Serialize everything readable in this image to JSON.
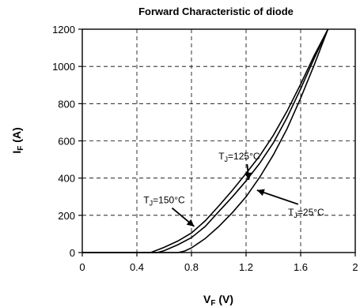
{
  "chart_data": {
    "type": "line",
    "title": "Forward Characteristic of diode",
    "xlabel": {
      "main": "V",
      "sub": "F",
      "unit": " (V)"
    },
    "ylabel": {
      "main": "I",
      "sub": "F",
      "unit": " (A)"
    },
    "xlim": [
      0,
      2
    ],
    "ylim": [
      0,
      1200
    ],
    "xticks": [
      0,
      0.4,
      0.8,
      1.2,
      1.6,
      2
    ],
    "xtick_labels": [
      "0",
      "0.4",
      "0.8",
      "1.2",
      "1.6",
      "2"
    ],
    "yticks": [
      0,
      200,
      400,
      600,
      800,
      1000,
      1200
    ],
    "ytick_labels": [
      "0",
      "200",
      "400",
      "600",
      "800",
      "1000",
      "1200"
    ],
    "grid": true,
    "series": [
      {
        "name": "",
        "x": [
          0.0,
          0.5,
          0.55,
          0.6,
          0.7,
          0.8,
          0.9,
          1.0,
          1.1,
          1.2,
          1.3,
          1.4,
          1.5,
          1.6,
          1.7,
          1.8
        ],
        "y": [
          0,
          0,
          14,
          28,
          62,
          105,
          170,
          250,
          335,
          425,
          520,
          630,
          760,
          905,
          1060,
          1200
        ]
      },
      {
        "name": "",
        "x": [
          0.0,
          0.55,
          0.6,
          0.7,
          0.8,
          0.9,
          1.0,
          1.1,
          1.2,
          1.3,
          1.4,
          1.5,
          1.6,
          1.7,
          1.8
        ],
        "y": [
          0,
          0,
          10,
          42,
          80,
          140,
          220,
          300,
          385,
          480,
          590,
          725,
          880,
          1045,
          1200
        ]
      },
      {
        "name": "",
        "x": [
          0.0,
          0.7,
          0.75,
          0.8,
          0.9,
          1.0,
          1.1,
          1.2,
          1.3,
          1.4,
          1.5,
          1.6,
          1.7,
          1.8
        ],
        "y": [
          0,
          0,
          8,
          25,
          75,
          140,
          215,
          300,
          405,
          525,
          665,
          830,
          1010,
          1200
        ]
      }
    ],
    "annotations": [
      {
        "main": "T",
        "sub": "J",
        "rest": "=125°C",
        "tx": 1.15,
        "ty": 500,
        "ax": 1.22,
        "ay": 390
      },
      {
        "main": "T",
        "sub": "J",
        "rest": "=150°C",
        "tx": 0.6,
        "ty": 265,
        "ax": 0.82,
        "ay": 140
      },
      {
        "main": "T",
        "sub": "J",
        "rest": "=25°C",
        "tx": 1.64,
        "ty": 200,
        "ax": 1.28,
        "ay": 335
      }
    ]
  }
}
